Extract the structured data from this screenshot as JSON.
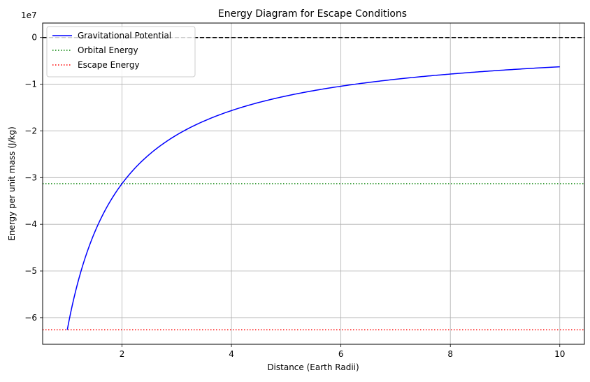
{
  "chart_data": {
    "type": "line",
    "title": "Energy Diagram for Escape Conditions",
    "xlabel": "Distance (Earth Radii)",
    "ylabel": "Energy per unit mass (J/kg)",
    "offset_text": "1e7",
    "xlim": [
      0.55,
      10.45
    ],
    "ylim": [
      -65700000.0,
      3100000.0
    ],
    "grid": true,
    "x_ticks": [
      2,
      4,
      6,
      8,
      10
    ],
    "x_tick_labels": [
      "2",
      "4",
      "6",
      "8",
      "10"
    ],
    "y_ticks": [
      0,
      -10000000.0,
      -20000000.0,
      -30000000.0,
      -40000000.0,
      -50000000.0,
      -60000000.0
    ],
    "y_tick_labels": [
      "0",
      "−1",
      "−2",
      "−3",
      "−4",
      "−5",
      "−6"
    ],
    "legend_position": "top-left",
    "series": [
      {
        "name": "Gravitational Potential",
        "kind": "curve",
        "formula": "-6.26e7 / x",
        "x_range": [
          1,
          10
        ],
        "color": "#0000ff",
        "style": "solid"
      },
      {
        "name": "Orbital Energy",
        "kind": "hline",
        "y": -31300000.0,
        "color": "#008000",
        "style": "dotted"
      },
      {
        "name": "Escape Energy",
        "kind": "hline",
        "y": -62600000.0,
        "color": "#ff0000",
        "style": "dotted"
      },
      {
        "name": "",
        "kind": "hline",
        "y": 0,
        "color": "#000000",
        "style": "dashed",
        "in_legend": false
      }
    ],
    "sample_points": {
      "x": [
        1,
        1.5,
        2,
        3,
        4,
        5,
        6,
        7,
        8,
        9,
        10
      ],
      "y": [
        -62600000.0,
        -41730000.0,
        -31300000.0,
        -20870000.0,
        -15650000.0,
        -12520000.0,
        -10430000.0,
        -8940000.0,
        -7830000.0,
        -6960000.0,
        -6260000.0
      ]
    }
  }
}
